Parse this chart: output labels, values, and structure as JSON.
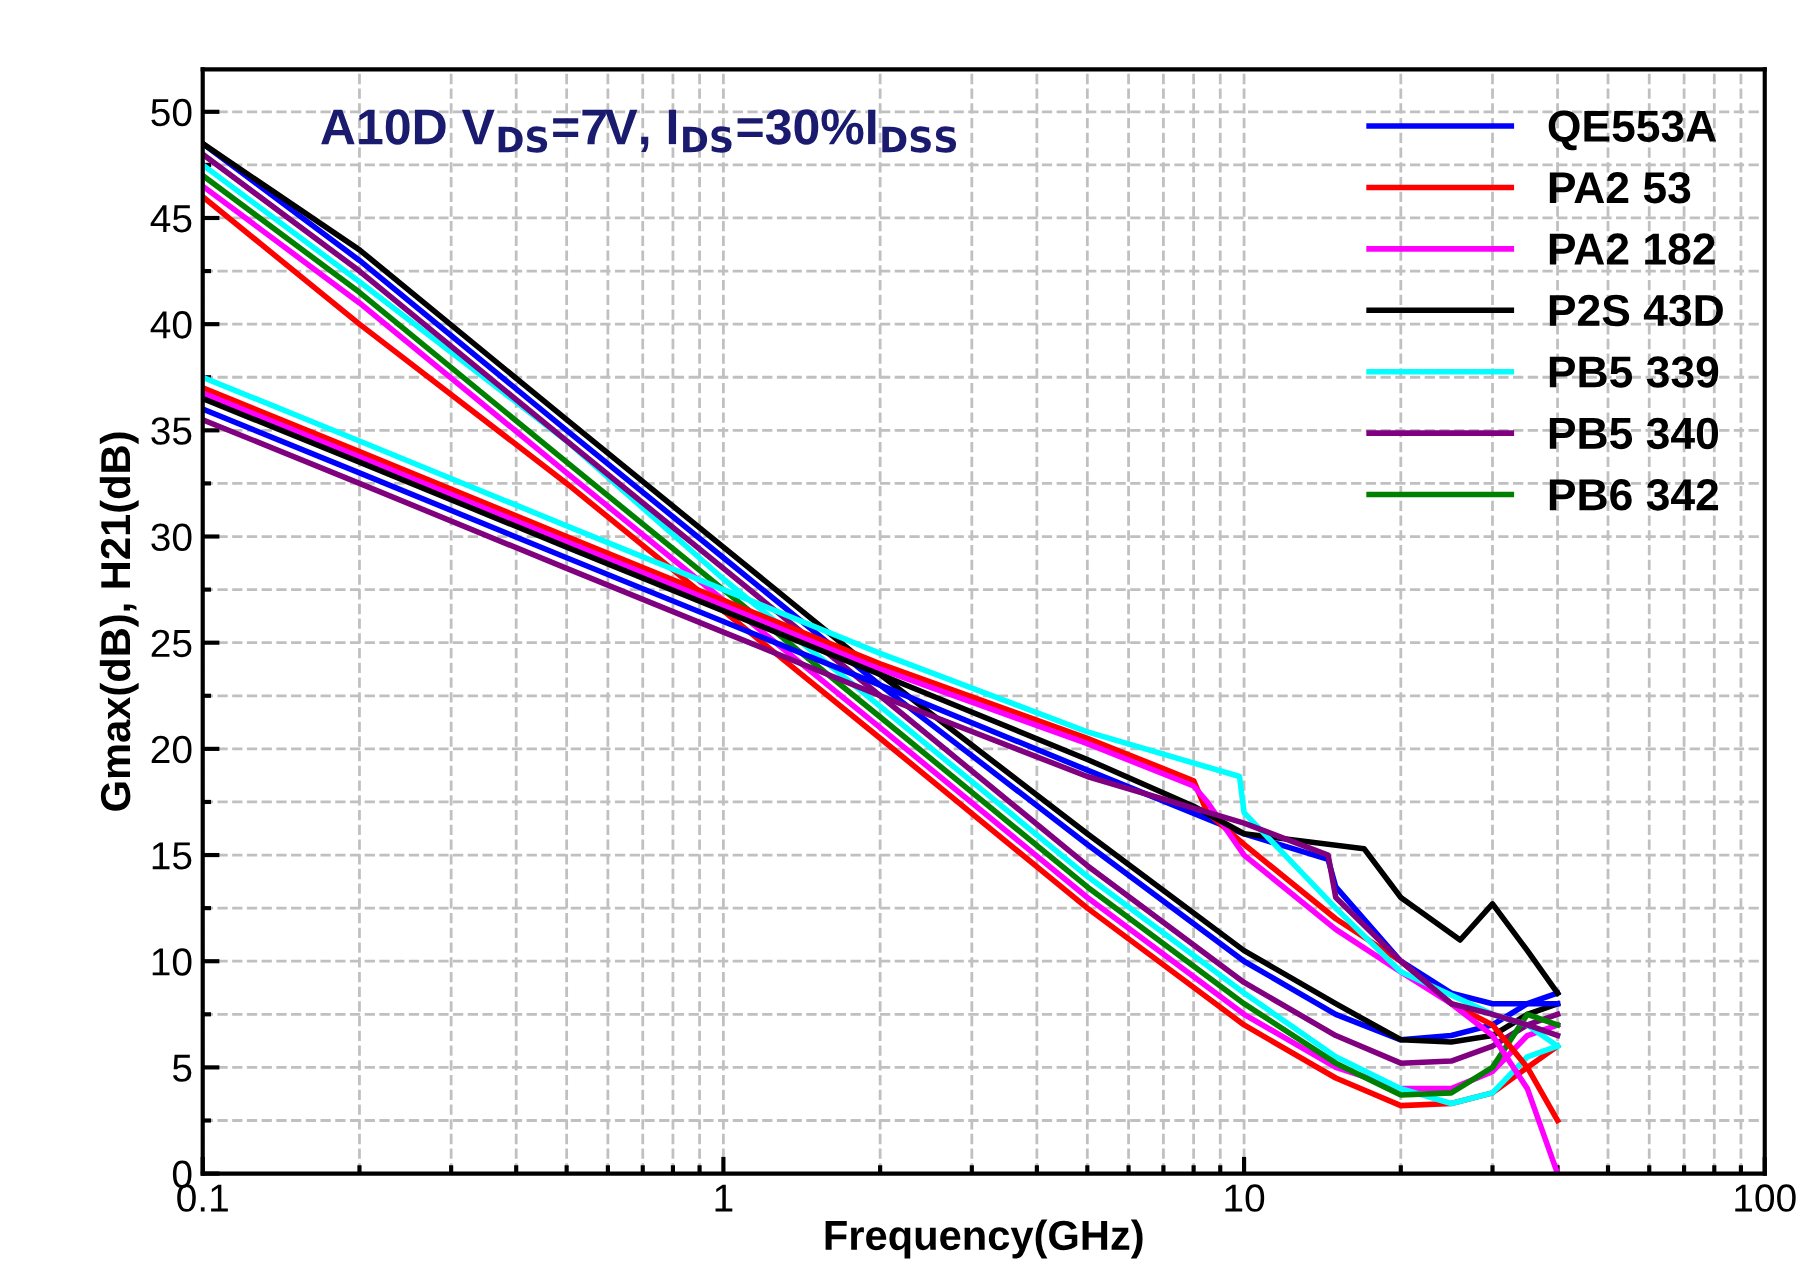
{
  "chart_data": {
    "type": "line",
    "title": "A10D V$_{DS}$=7V, I$_{DS}$=30%I$_{DSS}$",
    "xlabel": "Frequency(GHz)",
    "ylabel": "Gmax(dB), H21(dB)",
    "log": "x",
    "xlim": [
      0.1,
      100
    ],
    "xticks": [
      0.1,
      1,
      10,
      100
    ],
    "ylim": [
      0,
      52
    ],
    "yticks": [
      0,
      5,
      10,
      15,
      20,
      25,
      30,
      35,
      40,
      45,
      50
    ],
    "grid": true,
    "legend": "top right",
    "marker": "none",
    "line_style": "solid",
    "series": [
      {
        "name": "QE553A",
        "color": "#0000ff",
        "x": [
          0.1,
          0.2,
          0.5,
          1,
          2,
          5,
          10,
          15,
          20,
          25,
          30,
          35,
          40
        ],
        "values": [
          48.5,
          43,
          35,
          29,
          23,
          15.5,
          10,
          7.5,
          6.3,
          6.5,
          7,
          8,
          8.5
        ]
      },
      {
        "name": "PA2 53",
        "color": "#ff0000",
        "x": [
          0.1,
          0.2,
          0.5,
          1,
          2,
          5,
          10,
          15,
          20,
          25,
          30,
          35,
          40
        ],
        "values": [
          46,
          40,
          32.5,
          26.5,
          20.5,
          12.5,
          7,
          4.5,
          3.2,
          3.3,
          3.8,
          5,
          6
        ]
      },
      {
        "name": "PA2 182",
        "color": "#ff00ff",
        "x": [
          0.1,
          0.2,
          0.5,
          1,
          2,
          5,
          10,
          15,
          20,
          25,
          30,
          35,
          40
        ],
        "values": [
          46.5,
          41,
          33,
          27,
          21,
          13,
          7.5,
          5,
          4,
          4,
          4.8,
          6.5,
          7
        ]
      },
      {
        "name": "P2S 43D",
        "color": "#000000",
        "x": [
          0.1,
          0.2,
          0.5,
          1,
          2,
          5,
          10,
          15,
          20,
          25,
          30,
          35,
          40
        ],
        "values": [
          48.5,
          43.5,
          35.5,
          29.5,
          23.5,
          16,
          10.5,
          8,
          6.3,
          6.2,
          6.5,
          7.5,
          8
        ]
      },
      {
        "name": "PB5 339",
        "color": "#00ffff",
        "x": [
          0.1,
          0.2,
          0.5,
          1,
          2,
          5,
          10,
          15,
          20,
          25,
          30,
          35,
          40
        ],
        "values": [
          47.5,
          42,
          34.5,
          28,
          22,
          14,
          8.5,
          5.5,
          4,
          3.3,
          3.8,
          5.5,
          6
        ]
      },
      {
        "name": "PB5 340",
        "color": "#800080",
        "x": [
          0.1,
          0.2,
          0.5,
          1,
          2,
          5,
          10,
          15,
          20,
          25,
          30,
          35,
          40
        ],
        "values": [
          48,
          42.5,
          34.5,
          28.5,
          22.5,
          14.5,
          9,
          6.5,
          5.2,
          5.3,
          6,
          7,
          7.5
        ]
      },
      {
        "name": "PB6 342",
        "color": "#008000",
        "x": [
          0.1,
          0.2,
          0.5,
          1,
          2,
          5,
          10,
          15,
          20,
          25,
          30,
          35,
          40
        ],
        "values": [
          47,
          41.5,
          33.5,
          27.5,
          21.5,
          13.5,
          8,
          5.2,
          3.7,
          3.8,
          5,
          7.5,
          7
        ]
      },
      {
        "color": "#0000ff",
        "x": [
          0.1,
          0.2,
          0.5,
          1,
          2,
          5,
          10,
          14.5,
          15,
          20,
          25,
          30,
          35,
          40
        ],
        "values": [
          36,
          33,
          29,
          26,
          23,
          19,
          16,
          14.8,
          13.5,
          10,
          8.5,
          8,
          8,
          8
        ]
      },
      {
        "color": "#ff0000",
        "x": [
          0.1,
          0.2,
          0.5,
          1,
          2,
          5,
          8,
          8.5,
          10,
          15,
          20,
          25,
          30,
          35,
          40
        ],
        "values": [
          37,
          34,
          30,
          27,
          24,
          20.5,
          18.5,
          17,
          15.5,
          12,
          10,
          8,
          7,
          5,
          2.5
        ]
      },
      {
        "color": "#ff00ff",
        "x": [
          0.1,
          0.2,
          0.5,
          1,
          2,
          5,
          8,
          8.5,
          10,
          15,
          20,
          25,
          30,
          35,
          40
        ],
        "values": [
          36.75,
          33.75,
          29.75,
          26.75,
          23.75,
          20.25,
          18.25,
          17.5,
          15,
          11.5,
          9.5,
          8,
          6.5,
          4,
          0
        ]
      },
      {
        "color": "#000000",
        "x": [
          0.1,
          0.2,
          0.5,
          1,
          2,
          5,
          8,
          10,
          17,
          20,
          26,
          30,
          35,
          40
        ],
        "values": [
          36.5,
          33.5,
          29.5,
          26.5,
          23.5,
          19.5,
          17.3,
          16,
          15.3,
          13,
          11,
          12.7,
          10.5,
          8.5
        ]
      },
      {
        "color": "#00ffff",
        "x": [
          0.1,
          0.2,
          0.5,
          1,
          2,
          5,
          9.8,
          10,
          15,
          20,
          30,
          35,
          40
        ],
        "values": [
          37.5,
          34.5,
          30.5,
          27.5,
          24.5,
          20.8,
          18.7,
          17,
          12.5,
          9.5,
          7.5,
          7,
          6
        ]
      },
      {
        "color": "#800080",
        "x": [
          0.1,
          0.2,
          0.5,
          1,
          2,
          5,
          10,
          14.5,
          15,
          20,
          25,
          30,
          35,
          40
        ],
        "values": [
          35.5,
          32.5,
          28.5,
          25.5,
          22.5,
          18.7,
          16.5,
          15,
          13,
          10,
          8,
          7.5,
          7,
          6.5
        ]
      }
    ]
  }
}
